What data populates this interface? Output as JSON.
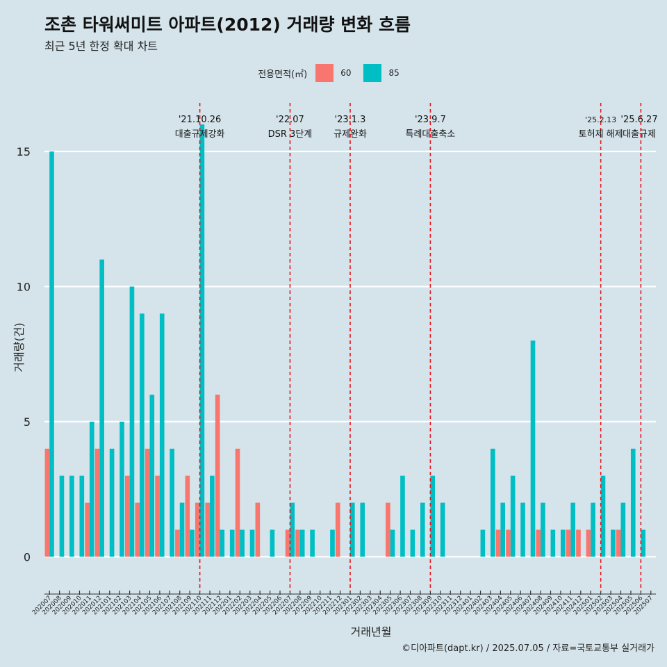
{
  "title": "조촌 타워써미트 아파트(2012) 거래량 변화 흐름",
  "subtitle": "최근 5년 한정 확대 차트",
  "caption": "©디아파트(dapt.kr) / 2025.07.05 / 자료=국토교통부 실거래가",
  "legend": {
    "title": "전용면적(㎡)",
    "items": [
      {
        "label": "60",
        "color": "#f8766d"
      },
      {
        "label": "85",
        "color": "#00bfc4"
      }
    ]
  },
  "chart_data": {
    "type": "bar",
    "title": "조촌 타워써미트 아파트(2012) 거래량 변화 흐름",
    "xlabel": "거래년월",
    "ylabel": "거래량(건)",
    "ylim": [
      -1.2,
      16.8
    ],
    "yticks": [
      0,
      5,
      10,
      15
    ],
    "categories": [
      "202007",
      "202008",
      "202009",
      "202010",
      "202011",
      "202012",
      "202101",
      "202102",
      "202103",
      "202104",
      "202105",
      "202106",
      "202107",
      "202108",
      "202109",
      "202110",
      "202111",
      "202112",
      "202201",
      "202202",
      "202203",
      "202204",
      "202205",
      "202206",
      "202207",
      "202208",
      "202209",
      "202210",
      "202211",
      "202212",
      "202301",
      "202302",
      "202303",
      "202304",
      "202305",
      "202306",
      "202307",
      "202308",
      "202309",
      "202310",
      "202311",
      "202312",
      "202401",
      "202402",
      "202403",
      "202404",
      "202405",
      "202406",
      "202407",
      "202408",
      "202409",
      "202410",
      "202411",
      "202412",
      "202501",
      "202502",
      "202503",
      "202504",
      "202505",
      "202506",
      "202507"
    ],
    "series": [
      {
        "name": "60",
        "color": "#f8766d",
        "values": [
          4,
          0,
          0,
          0,
          2,
          4,
          0,
          0,
          3,
          2,
          4,
          3,
          0,
          1,
          3,
          2,
          2,
          6,
          0,
          4,
          0,
          2,
          0,
          0,
          1,
          1,
          0,
          0,
          0,
          2,
          0,
          0,
          0,
          0,
          2,
          0,
          0,
          0,
          0,
          0,
          0,
          0,
          0,
          0,
          0,
          1,
          1,
          0,
          0,
          1,
          0,
          0,
          1,
          1,
          1,
          0,
          0,
          1,
          0,
          0,
          0
        ]
      },
      {
        "name": "85",
        "color": "#00bfc4",
        "values": [
          15,
          3,
          3,
          3,
          5,
          11,
          4,
          5,
          10,
          9,
          6,
          9,
          4,
          2,
          1,
          16,
          3,
          1,
          1,
          1,
          1,
          0,
          1,
          0,
          2,
          1,
          1,
          0,
          1,
          0,
          2,
          2,
          0,
          0,
          1,
          3,
          1,
          2,
          3,
          2,
          0,
          0,
          0,
          1,
          4,
          2,
          3,
          2,
          8,
          2,
          1,
          1,
          2,
          0,
          2,
          3,
          1,
          2,
          4,
          1,
          0
        ]
      }
    ],
    "events": [
      {
        "date": "'21.10.26",
        "label": "대출규제강화",
        "at": "202110"
      },
      {
        "date": "'22.07",
        "label": "DSR 3단계",
        "at": "202207"
      },
      {
        "date": "'23.1.3",
        "label": "규제완화",
        "at": "202301"
      },
      {
        "date": "'23.9.7",
        "label": "특례대출축소",
        "at": "202309"
      },
      {
        "date": "'25.2.13",
        "label": "토허제 해제",
        "at": "202502"
      },
      {
        "date": "'25.6.27",
        "label": "대출규제",
        "at": "202506"
      }
    ]
  }
}
